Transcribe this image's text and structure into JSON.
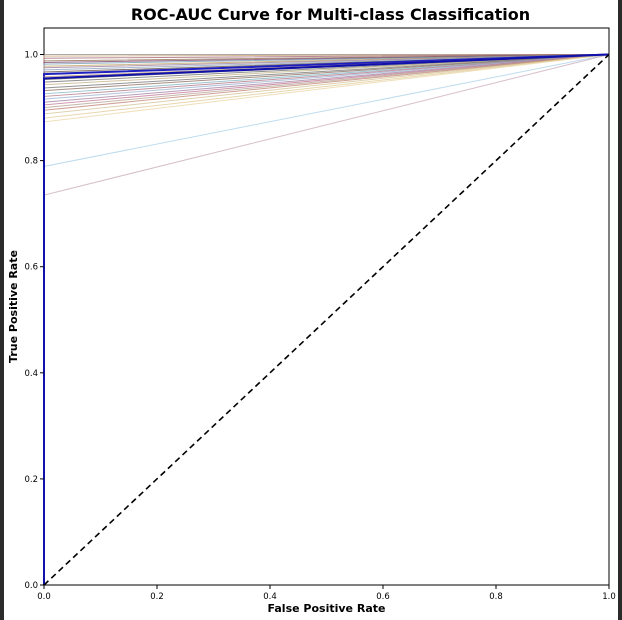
{
  "chart_data": {
    "type": "line",
    "title": "ROC-AUC Curve for Multi-class Classification",
    "xlabel": "False Positive Rate",
    "ylabel": "True Positive Rate",
    "xlim": [
      0.0,
      1.0
    ],
    "ylim": [
      0.0,
      1.05
    ],
    "x_ticks": [
      "0.0",
      "0.2",
      "0.4",
      "0.6",
      "0.8",
      "1.0"
    ],
    "y_ticks": [
      "0.0",
      "0.2",
      "0.4",
      "0.6",
      "0.8",
      "1.0"
    ],
    "grid": false,
    "legend": "none",
    "chance_line": {
      "x": [
        0.0,
        1.0
      ],
      "y": [
        0.0,
        1.0
      ],
      "color": "#000000",
      "style": "dashed"
    },
    "series": [
      {
        "x": [
          0,
          0,
          1
        ],
        "y": [
          0,
          1.0,
          1.0
        ],
        "color": "#8c8c8c"
      },
      {
        "x": [
          0,
          0,
          1
        ],
        "y": [
          0,
          0.997,
          1.0
        ],
        "color": "#c8a070"
      },
      {
        "x": [
          0,
          0,
          1
        ],
        "y": [
          0,
          0.993,
          1.0
        ],
        "color": "#a06070"
      },
      {
        "x": [
          0,
          0,
          1
        ],
        "y": [
          0,
          0.988,
          1.0
        ],
        "color": "#8b6a4a"
      },
      {
        "x": [
          0,
          0,
          1
        ],
        "y": [
          0,
          0.985,
          1.0
        ],
        "color": "#7a3a6a"
      },
      {
        "x": [
          0,
          0,
          1
        ],
        "y": [
          0,
          0.982,
          1.0
        ],
        "color": "#6a9ab0"
      },
      {
        "x": [
          0,
          0,
          1
        ],
        "y": [
          0,
          0.978,
          1.0
        ],
        "color": "#c0a060"
      },
      {
        "x": [
          0,
          0,
          1
        ],
        "y": [
          0,
          0.975,
          1.0
        ],
        "color": "#9a7a9a"
      },
      {
        "x": [
          0,
          0,
          1
        ],
        "y": [
          0,
          0.971,
          1.0
        ],
        "color": "#8aa0c0"
      },
      {
        "x": [
          0,
          0,
          1
        ],
        "y": [
          0,
          0.967,
          1.0
        ],
        "color": "#5a4a3a"
      },
      {
        "x": [
          0,
          0,
          1
        ],
        "y": [
          0,
          0.963,
          1.0
        ],
        "color": "#2020c0"
      },
      {
        "x": [
          0,
          0,
          1
        ],
        "y": [
          0,
          0.958,
          1.0
        ],
        "color": "#b08a6a"
      },
      {
        "x": [
          0,
          0,
          1
        ],
        "y": [
          0,
          0.953,
          1.0
        ],
        "color": "#404040"
      },
      {
        "x": [
          0,
          0,
          1
        ],
        "y": [
          0,
          0.948,
          1.0
        ],
        "color": "#6a6a6a"
      },
      {
        "x": [
          0,
          0,
          1
        ],
        "y": [
          0,
          0.943,
          1.0
        ],
        "color": "#c0b080"
      },
      {
        "x": [
          0,
          0,
          1
        ],
        "y": [
          0,
          0.937,
          1.0
        ],
        "color": "#707070"
      },
      {
        "x": [
          0,
          0,
          1
        ],
        "y": [
          0,
          0.932,
          1.0
        ],
        "color": "#8a6a5a"
      },
      {
        "x": [
          0,
          0,
          1
        ],
        "y": [
          0,
          0.926,
          1.0
        ],
        "color": "#7ab0c0"
      },
      {
        "x": [
          0,
          0,
          1
        ],
        "y": [
          0,
          0.921,
          1.0
        ],
        "color": "#b07080"
      },
      {
        "x": [
          0,
          0,
          1
        ],
        "y": [
          0,
          0.916,
          1.0
        ],
        "color": "#9ab0d0"
      },
      {
        "x": [
          0,
          0,
          1
        ],
        "y": [
          0,
          0.91,
          1.0
        ],
        "color": "#a080a0"
      },
      {
        "x": [
          0,
          0,
          1
        ],
        "y": [
          0,
          0.905,
          1.0
        ],
        "color": "#c07090"
      },
      {
        "x": [
          0,
          0,
          1
        ],
        "y": [
          0,
          0.9,
          1.0
        ],
        "color": "#b0a090"
      },
      {
        "x": [
          0,
          0,
          1
        ],
        "y": [
          0,
          0.895,
          1.0
        ],
        "color": "#c08070"
      },
      {
        "x": [
          0,
          0,
          1
        ],
        "y": [
          0,
          0.888,
          1.0
        ],
        "color": "#d0c090"
      },
      {
        "x": [
          0,
          0,
          1
        ],
        "y": [
          0,
          0.88,
          1.0
        ],
        "color": "#e0c890"
      },
      {
        "x": [
          0,
          0,
          1
        ],
        "y": [
          0,
          0.873,
          1.0
        ],
        "color": "#e8d4a0"
      },
      {
        "x": [
          0,
          0,
          1
        ],
        "y": [
          0,
          0.789,
          1.0
        ],
        "color": "#a8d0e8"
      },
      {
        "x": [
          0,
          0,
          1
        ],
        "y": [
          0,
          0.735,
          1.0
        ],
        "color": "#c8a8b8"
      },
      {
        "x": [
          0,
          0,
          1
        ],
        "y": [
          0,
          0.955,
          1.0
        ],
        "color": "#1010aa"
      }
    ]
  }
}
